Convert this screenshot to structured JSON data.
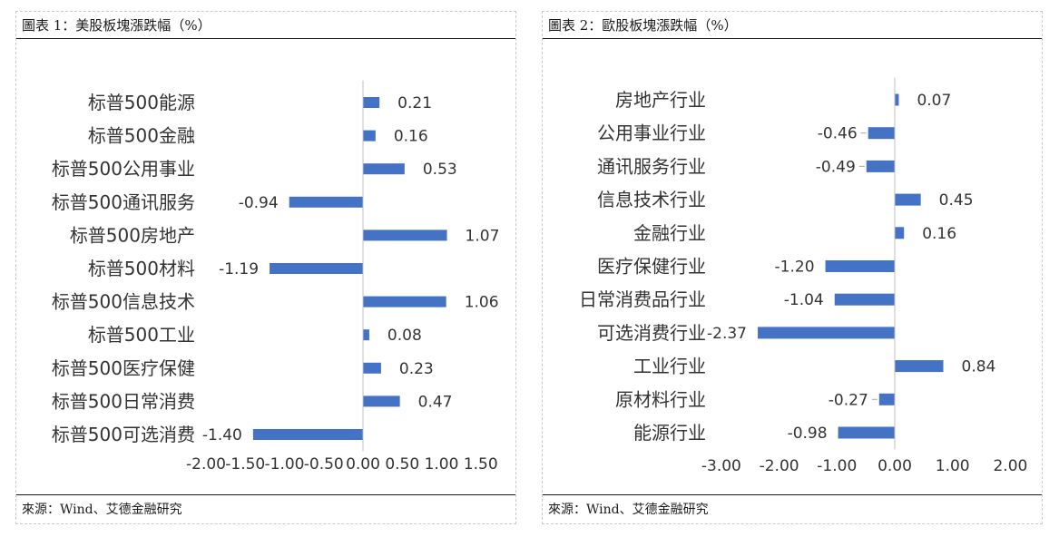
{
  "charts": [
    {
      "panel_title": "圖表 1：美股板塊漲跌幅（%）",
      "source": "來源：Wind、艾德金融研究",
      "chart_data": {
        "type": "bar",
        "orientation": "horizontal",
        "categories": [
          "标普500能源",
          "标普500金融",
          "标普500公用事业",
          "标普500通讯服务",
          "标普500房地产",
          "标普500材料",
          "标普500信息技术",
          "标普500工业",
          "标普500医疗保健",
          "标普500日常消费",
          "标普500可选消费"
        ],
        "values": [
          0.21,
          0.16,
          0.53,
          -0.94,
          1.07,
          -1.19,
          1.06,
          0.08,
          0.23,
          0.47,
          -1.4
        ],
        "value_labels": [
          "0.21",
          "0.16",
          "0.53",
          "-0.94",
          "1.07",
          "-1.19",
          "1.06",
          "0.08",
          "0.23",
          "0.47",
          "-1.40"
        ],
        "xlim": [
          -2.0,
          1.5
        ],
        "ticks": [
          -2.0,
          -1.5,
          -1.0,
          -0.5,
          0.0,
          0.5,
          1.0,
          1.5
        ],
        "tick_labels": [
          "-2.00",
          "-1.50",
          "-1.00",
          "-0.50",
          "0.00",
          "0.50",
          "1.00",
          "1.50"
        ],
        "bar_color": "#4472c4",
        "grid": false
      }
    },
    {
      "panel_title": "圖表 2：歐股板塊漲跌幅（%）",
      "source": "來源：Wind、艾德金融研究",
      "chart_data": {
        "type": "bar",
        "orientation": "horizontal",
        "categories": [
          "房地产行业",
          "公用事业行业",
          "通讯服务行业",
          "信息技术行业",
          "金融行业",
          "医疗保健行业",
          "日常消费品行业",
          "可选消费行业",
          "工业行业",
          "原材料行业",
          "能源行业"
        ],
        "values": [
          0.07,
          -0.46,
          -0.49,
          0.45,
          0.16,
          -1.2,
          -1.04,
          -2.37,
          0.84,
          -0.27,
          -0.98
        ],
        "value_labels": [
          "0.07",
          "-0.46",
          "-0.49",
          "0.45",
          "0.16",
          "-1.20",
          "-1.04",
          "-2.37",
          "0.84",
          "-0.27",
          "-0.98"
        ],
        "xlim": [
          -3.0,
          2.0
        ],
        "ticks": [
          -3.0,
          -2.0,
          -1.0,
          0.0,
          1.0,
          2.0
        ],
        "tick_labels": [
          "-3.00",
          "-2.00",
          "-1.00",
          "0.00",
          "1.00",
          "2.00"
        ],
        "bar_color": "#4472c4",
        "grid": false
      }
    }
  ]
}
